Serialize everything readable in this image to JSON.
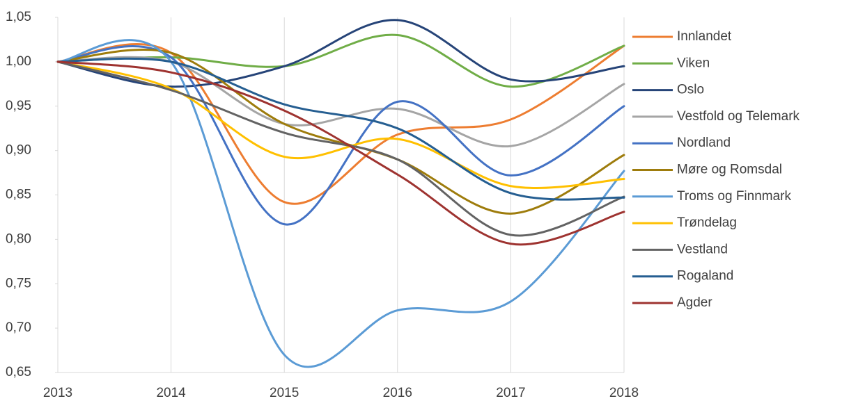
{
  "chart_data": {
    "type": "line",
    "x": [
      2013,
      2014,
      2015,
      2016,
      2017,
      2018
    ],
    "xlim": [
      2013,
      2018
    ],
    "xticks": [
      2013,
      2014,
      2015,
      2016,
      2017,
      2018
    ],
    "ylim": [
      0.65,
      1.05
    ],
    "yticks": [
      {
        "value": 0.65,
        "label": "0,65"
      },
      {
        "value": 0.7,
        "label": "0,70"
      },
      {
        "value": 0.75,
        "label": "0,75"
      },
      {
        "value": 0.8,
        "label": "0,80"
      },
      {
        "value": 0.85,
        "label": "0,85"
      },
      {
        "value": 0.9,
        "label": "0,90"
      },
      {
        "value": 0.95,
        "label": "0,95"
      },
      {
        "value": 1.0,
        "label": "1,00"
      },
      {
        "value": 1.05,
        "label": "1,05"
      }
    ],
    "grid": "x",
    "legend": "right",
    "smooth": true,
    "series": [
      {
        "name": "Innlandet",
        "color": "#ed7d31",
        "values": [
          1.0,
          1.01,
          0.842,
          0.918,
          0.935,
          1.018
        ]
      },
      {
        "name": "Viken",
        "color": "#70ad47",
        "values": [
          1.0,
          1.005,
          0.995,
          1.03,
          0.972,
          1.018
        ]
      },
      {
        "name": "Oslo",
        "color": "#264478",
        "values": [
          1.0,
          0.972,
          0.995,
          1.047,
          0.98,
          0.995
        ]
      },
      {
        "name": "Vestfold og Telemark",
        "color": "#a5a5a5",
        "values": [
          1.0,
          1.0,
          0.93,
          0.947,
          0.905,
          0.975
        ]
      },
      {
        "name": "Nordland",
        "color": "#4472c4",
        "values": [
          1.0,
          1.005,
          0.817,
          0.955,
          0.872,
          0.95
        ]
      },
      {
        "name": "Møre og Romsdal",
        "color": "#9e7c0c",
        "values": [
          1.0,
          1.01,
          0.93,
          0.89,
          0.829,
          0.895
        ]
      },
      {
        "name": "Troms og Finnmark",
        "color": "#5b9bd5",
        "values": [
          1.0,
          1.0,
          0.67,
          0.72,
          0.73,
          0.877
        ]
      },
      {
        "name": "Trøndelag",
        "color": "#ffc000",
        "values": [
          1.0,
          0.97,
          0.893,
          0.913,
          0.86,
          0.868
        ]
      },
      {
        "name": "Vestland",
        "color": "#636363",
        "values": [
          1.0,
          0.968,
          0.92,
          0.89,
          0.805,
          0.848
        ]
      },
      {
        "name": "Rogaland",
        "color": "#255e91",
        "values": [
          1.0,
          1.0,
          0.952,
          0.925,
          0.852,
          0.847
        ]
      },
      {
        "name": "Agder",
        "color": "#9e3330",
        "values": [
          1.0,
          0.988,
          0.945,
          0.873,
          0.795,
          0.831
        ]
      }
    ]
  }
}
